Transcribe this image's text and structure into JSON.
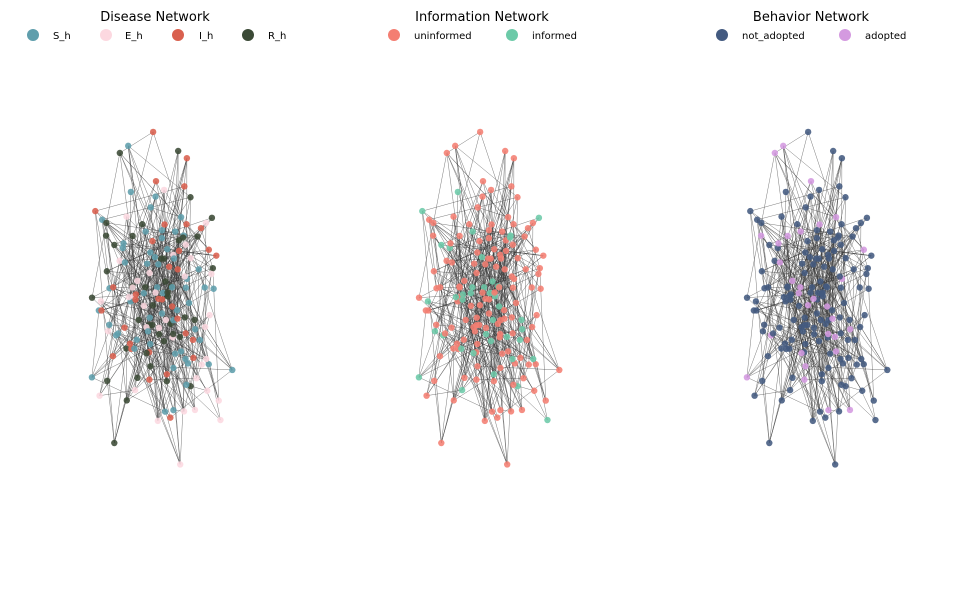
{
  "panels": [
    {
      "title": "Disease Network",
      "legend": [
        {
          "label": "S_h",
          "color": "#5f9eac"
        },
        {
          "label": "E_h",
          "color": "#fcd8e0"
        },
        {
          "label": "I_h",
          "color": "#d9604e"
        },
        {
          "label": "R_h",
          "color": "#3b4a36"
        }
      ]
    },
    {
      "title": "Information Network",
      "legend": [
        {
          "label": "uninformed",
          "color": "#f47e72"
        },
        {
          "label": "informed",
          "color": "#6ccaa8"
        }
      ]
    },
    {
      "title": "Behavior Network",
      "legend": [
        {
          "label": "not_adopted",
          "color": "#435a80"
        },
        {
          "label": "adopted",
          "color": "#d49ae0"
        }
      ]
    }
  ]
}
